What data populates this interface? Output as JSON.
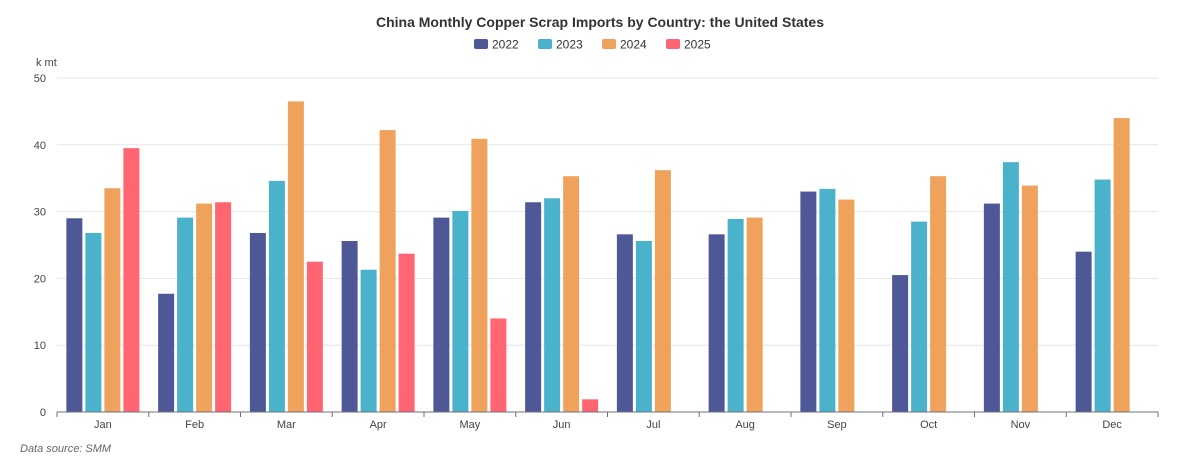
{
  "chart_data": {
    "type": "bar",
    "title": "China Monthly Copper Scrap Imports by Country: the United States",
    "ylabel": "k mt",
    "xlabel": "",
    "ylim": [
      0,
      50
    ],
    "yticks": [
      "0",
      "10",
      "20",
      "30",
      "40",
      "50"
    ],
    "grid": true,
    "legend_position": "top-center",
    "categories": [
      "Jan",
      "Feb",
      "Mar",
      "Apr",
      "May",
      "Jun",
      "Jul",
      "Aug",
      "Sep",
      "Oct",
      "Nov",
      "Dec"
    ],
    "series": [
      {
        "name": "2022",
        "color": "#4e5896",
        "values": [
          29.0,
          17.7,
          26.8,
          25.6,
          29.1,
          31.4,
          26.6,
          26.6,
          33.0,
          20.5,
          31.2,
          24.0
        ]
      },
      {
        "name": "2023",
        "color": "#4ab3cb",
        "values": [
          26.8,
          29.1,
          34.6,
          21.3,
          30.1,
          32.0,
          25.6,
          28.9,
          33.4,
          28.5,
          37.4,
          34.8
        ]
      },
      {
        "name": "2024",
        "color": "#eea25c",
        "values": [
          33.5,
          31.2,
          46.5,
          42.2,
          40.9,
          35.3,
          36.2,
          29.1,
          31.8,
          35.3,
          33.9,
          44.0
        ]
      },
      {
        "name": "2025",
        "color": "#ff6672",
        "values": [
          39.5,
          31.4,
          22.5,
          23.7,
          14.0,
          1.9,
          null,
          null,
          null,
          null,
          null,
          null
        ]
      }
    ]
  },
  "footer": {
    "source": "Data source:  SMM"
  }
}
